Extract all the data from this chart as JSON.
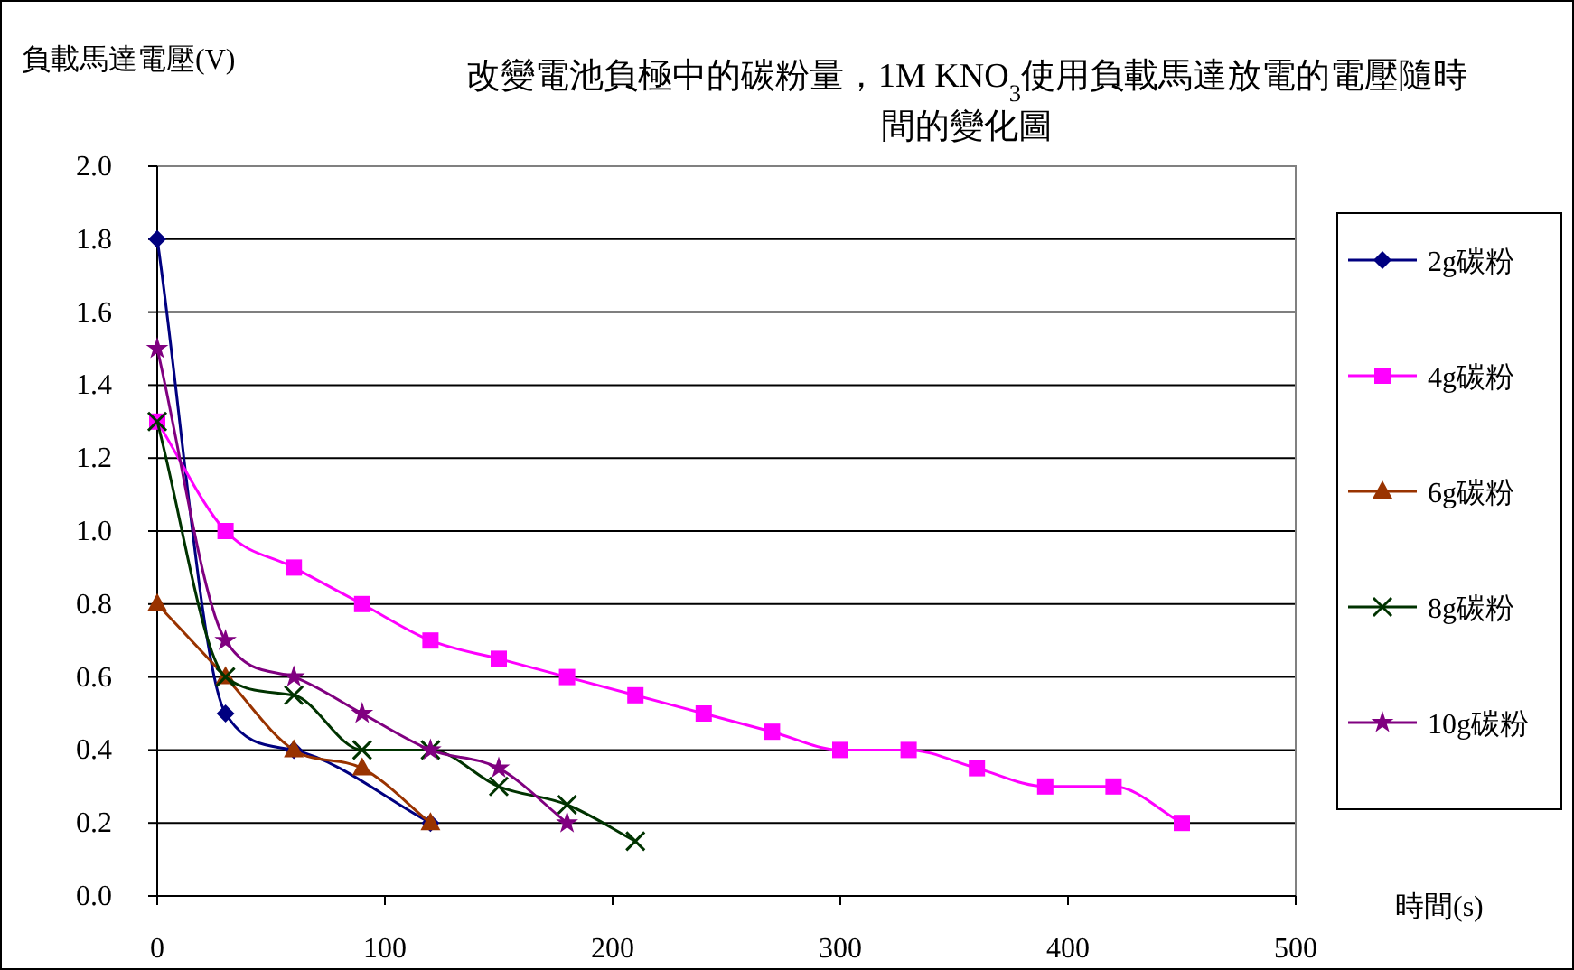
{
  "chart_data": {
    "type": "line",
    "title": "改變電池負極中的碳粉量，1M KNO$_{3}$使用負載馬達放電的電壓隨時間的變化圖",
    "xlabel": "時間(s)",
    "ylabel": "負載馬達電壓(V)",
    "xlim": [
      0,
      500
    ],
    "xticks": [
      0,
      100,
      200,
      300,
      400,
      500
    ],
    "ylim": [
      0,
      2
    ],
    "yticks": [
      {
        "value": 0,
        "label": "0.0"
      },
      {
        "value": 0.2,
        "label": "0.2"
      },
      {
        "value": 0.4,
        "label": "0.4"
      },
      {
        "value": 0.6,
        "label": "0.6"
      },
      {
        "value": 0.8,
        "label": "0.8"
      },
      {
        "value": 1,
        "label": "1.0"
      },
      {
        "value": 1.2,
        "label": "1.2"
      },
      {
        "value": 1.4,
        "label": "1.4"
      },
      {
        "value": 1.6,
        "label": "1.6"
      },
      {
        "value": 1.8,
        "label": "1.8"
      },
      {
        "value": 2,
        "label": "2.0"
      }
    ],
    "grid": "y",
    "legend": "right",
    "series": [
      {
        "name": "2g碳粉",
        "color": "#000080",
        "marker": "diamond",
        "x": [
          0,
          30,
          60,
          120
        ],
        "values": [
          1.8,
          0.5,
          0.4,
          0.2
        ]
      },
      {
        "name": "4g碳粉",
        "color": "#ff00ff",
        "marker": "square",
        "x": [
          0,
          30,
          60,
          90,
          120,
          150,
          180,
          210,
          240,
          270,
          300,
          330,
          360,
          390,
          420,
          450
        ],
        "values": [
          1.3,
          1.0,
          0.9,
          0.8,
          0.7,
          0.65,
          0.6,
          0.55,
          0.5,
          0.45,
          0.4,
          0.4,
          0.35,
          0.3,
          0.3,
          0.2
        ]
      },
      {
        "name": "6g碳粉",
        "color": "#993300",
        "marker": "triangle",
        "x": [
          0,
          30,
          60,
          90,
          120
        ],
        "values": [
          0.8,
          0.6,
          0.4,
          0.35,
          0.2
        ]
      },
      {
        "name": "8g碳粉",
        "color": "#003300",
        "marker": "cross",
        "x": [
          0,
          30,
          60,
          90,
          120,
          150,
          180,
          210
        ],
        "values": [
          1.3,
          0.6,
          0.55,
          0.4,
          0.4,
          0.3,
          0.25,
          0.15
        ]
      },
      {
        "name": "10g碳粉",
        "color": "#800080",
        "marker": "star",
        "x": [
          0,
          30,
          60,
          90,
          120,
          150,
          180
        ],
        "values": [
          1.5,
          0.7,
          0.6,
          0.5,
          0.4,
          0.35,
          0.2
        ]
      }
    ]
  }
}
